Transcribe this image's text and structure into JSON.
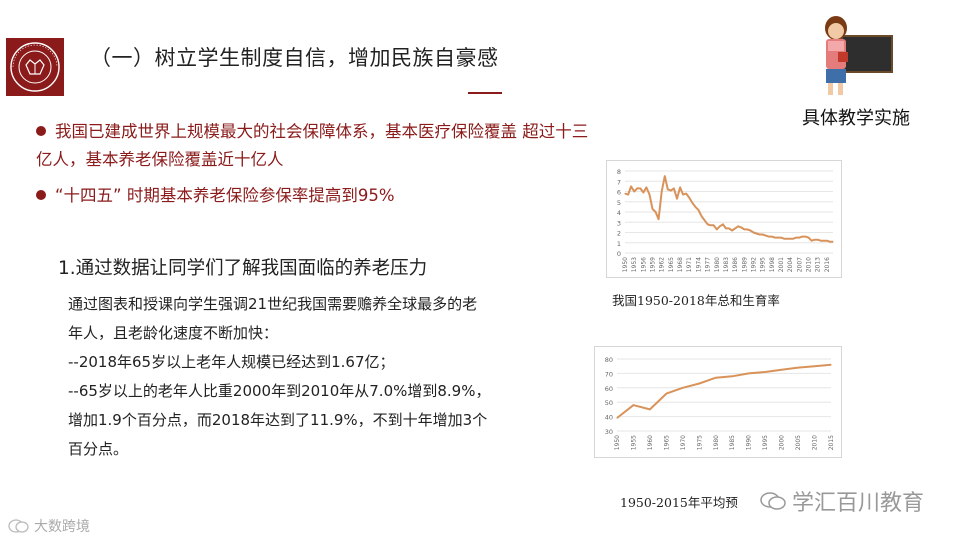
{
  "header": {
    "title": "（一）树立学生制度自信，增加民族自豪感",
    "corner_label": "具体教学实施",
    "logo_text": "PEKING UNIVERSITY 1898"
  },
  "bullets": [
    "我国已建成世界上规模最大的社会保障体系，基本医疗保险覆盖 超过十三亿人，基本养老保险覆盖近十亿人",
    "“十四五” 时期基本养老保险参保率提高到95%"
  ],
  "section": {
    "heading": "1.通过数据让同学们了解我国面临的养老压力",
    "lines": [
      "通过图表和授课向学生强调21世纪我国需要赡养全球最多的老",
      "年人，且老龄化速度不断加快：",
      "--2018年65岁以上老年人规模已经达到1.67亿；",
      "--65岁以上的老年人比重2000年到2010年从7.0%增到8.9%，",
      "增加1.9个百分点，而2018年达到了11.9%，不到十年增加3个",
      "百分点。"
    ]
  },
  "captions": {
    "chart1": "我国1950-2018年总和生育率",
    "chart2": "1950-2015年平均预"
  },
  "watermarks": {
    "right": "学汇百川教育",
    "left": "大数跨境"
  },
  "colors": {
    "accent": "#8b1a1a",
    "line": "#d9935a"
  },
  "chart_data": [
    {
      "type": "line",
      "title": "",
      "ylim": [
        0,
        8
      ],
      "yticks": [
        0,
        1,
        2,
        3,
        4,
        5,
        6,
        7,
        8
      ],
      "x": [
        1950,
        1951,
        1952,
        1953,
        1954,
        1955,
        1956,
        1957,
        1958,
        1959,
        1960,
        1961,
        1962,
        1963,
        1964,
        1965,
        1966,
        1967,
        1968,
        1969,
        1970,
        1971,
        1972,
        1973,
        1974,
        1975,
        1976,
        1977,
        1978,
        1979,
        1980,
        1981,
        1982,
        1983,
        1984,
        1985,
        1986,
        1987,
        1988,
        1989,
        1990,
        1991,
        1992,
        1993,
        1994,
        1995,
        1996,
        1997,
        1998,
        1999,
        2000,
        2001,
        2002,
        2003,
        2004,
        2005,
        2006,
        2007,
        2008,
        2009,
        2010,
        2011,
        2012,
        2013,
        2014,
        2015,
        2016,
        2017,
        2018
      ],
      "series": [
        {
          "values": [
            5.8,
            5.7,
            6.5,
            6.0,
            6.3,
            6.3,
            5.9,
            6.4,
            5.7,
            4.3,
            4.0,
            3.3,
            6.0,
            7.5,
            6.2,
            6.1,
            6.3,
            5.3,
            6.4,
            5.7,
            5.8,
            5.4,
            4.9,
            4.5,
            4.2,
            3.6,
            3.2,
            2.8,
            2.7,
            2.7,
            2.3,
            2.6,
            2.8,
            2.4,
            2.4,
            2.2,
            2.4,
            2.6,
            2.5,
            2.3,
            2.3,
            2.2,
            2.0,
            1.9,
            1.8,
            1.8,
            1.7,
            1.6,
            1.6,
            1.5,
            1.5,
            1.5,
            1.4,
            1.4,
            1.4,
            1.4,
            1.5,
            1.5,
            1.6,
            1.6,
            1.5,
            1.2,
            1.3,
            1.3,
            1.2,
            1.2,
            1.2,
            1.1,
            1.1
          ]
        }
      ],
      "xticks": [
        "1950",
        "1953",
        "1956",
        "1959",
        "1962",
        "1965",
        "1968",
        "1971",
        "1974",
        "1977",
        "1980",
        "1983",
        "1986",
        "1989",
        "1992",
        "1995",
        "1998",
        "2001",
        "2004",
        "2007",
        "2010",
        "2013",
        "2016"
      ]
    },
    {
      "type": "line",
      "title": "",
      "ylim": [
        30,
        80
      ],
      "yticks": [
        30,
        40,
        50,
        60,
        70,
        80
      ],
      "x": [
        1950,
        1955,
        1960,
        1965,
        1970,
        1975,
        1980,
        1985,
        1990,
        1995,
        2000,
        2005,
        2010,
        2015
      ],
      "series": [
        {
          "values": [
            39,
            48,
            45,
            56,
            60,
            63,
            67,
            68,
            70,
            71,
            72.5,
            74,
            75,
            76
          ]
        }
      ],
      "xticks": [
        "1950",
        "1955",
        "1960",
        "1965",
        "1970",
        "1975",
        "1980",
        "1985",
        "1990",
        "1995",
        "2000",
        "2005",
        "2010",
        "2015"
      ]
    }
  ]
}
